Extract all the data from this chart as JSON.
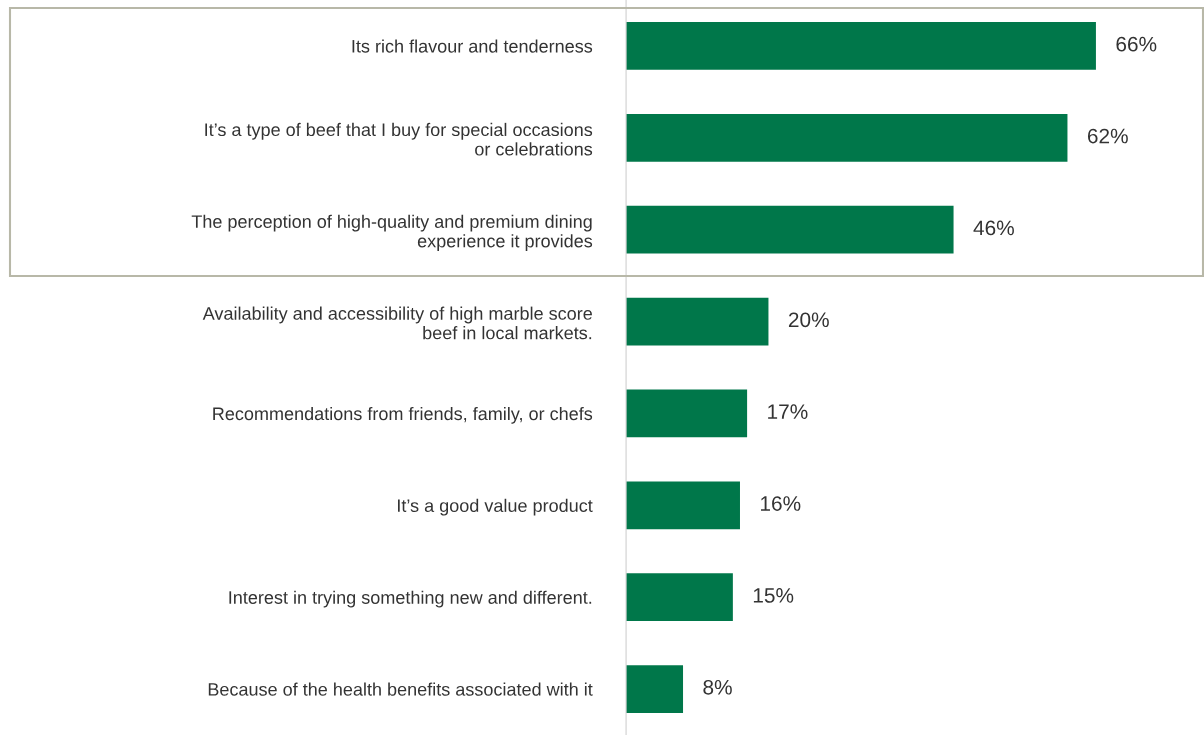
{
  "chart_data": {
    "type": "bar",
    "orientation": "horizontal",
    "categories": [
      "Its rich flavour and tenderness",
      "It’s a type of beef that I buy for special occasions\nor celebrations",
      "The perception of high-quality and premium dining\nexperience it provides",
      "Availability and accessibility of high marble score\nbeef in local markets.",
      "Recommendations from friends, family, or chefs",
      "It’s a good value product",
      "Interest in trying something new and different.",
      "Because of the health benefits associated with it"
    ],
    "values": [
      66,
      62,
      46,
      20,
      17,
      16,
      15,
      8
    ],
    "value_labels": [
      "66%",
      "62%",
      "46%",
      "20%",
      "17%",
      "16%",
      "15%",
      "8%"
    ],
    "color": "#00774a",
    "grid": false,
    "legend": false
  }
}
